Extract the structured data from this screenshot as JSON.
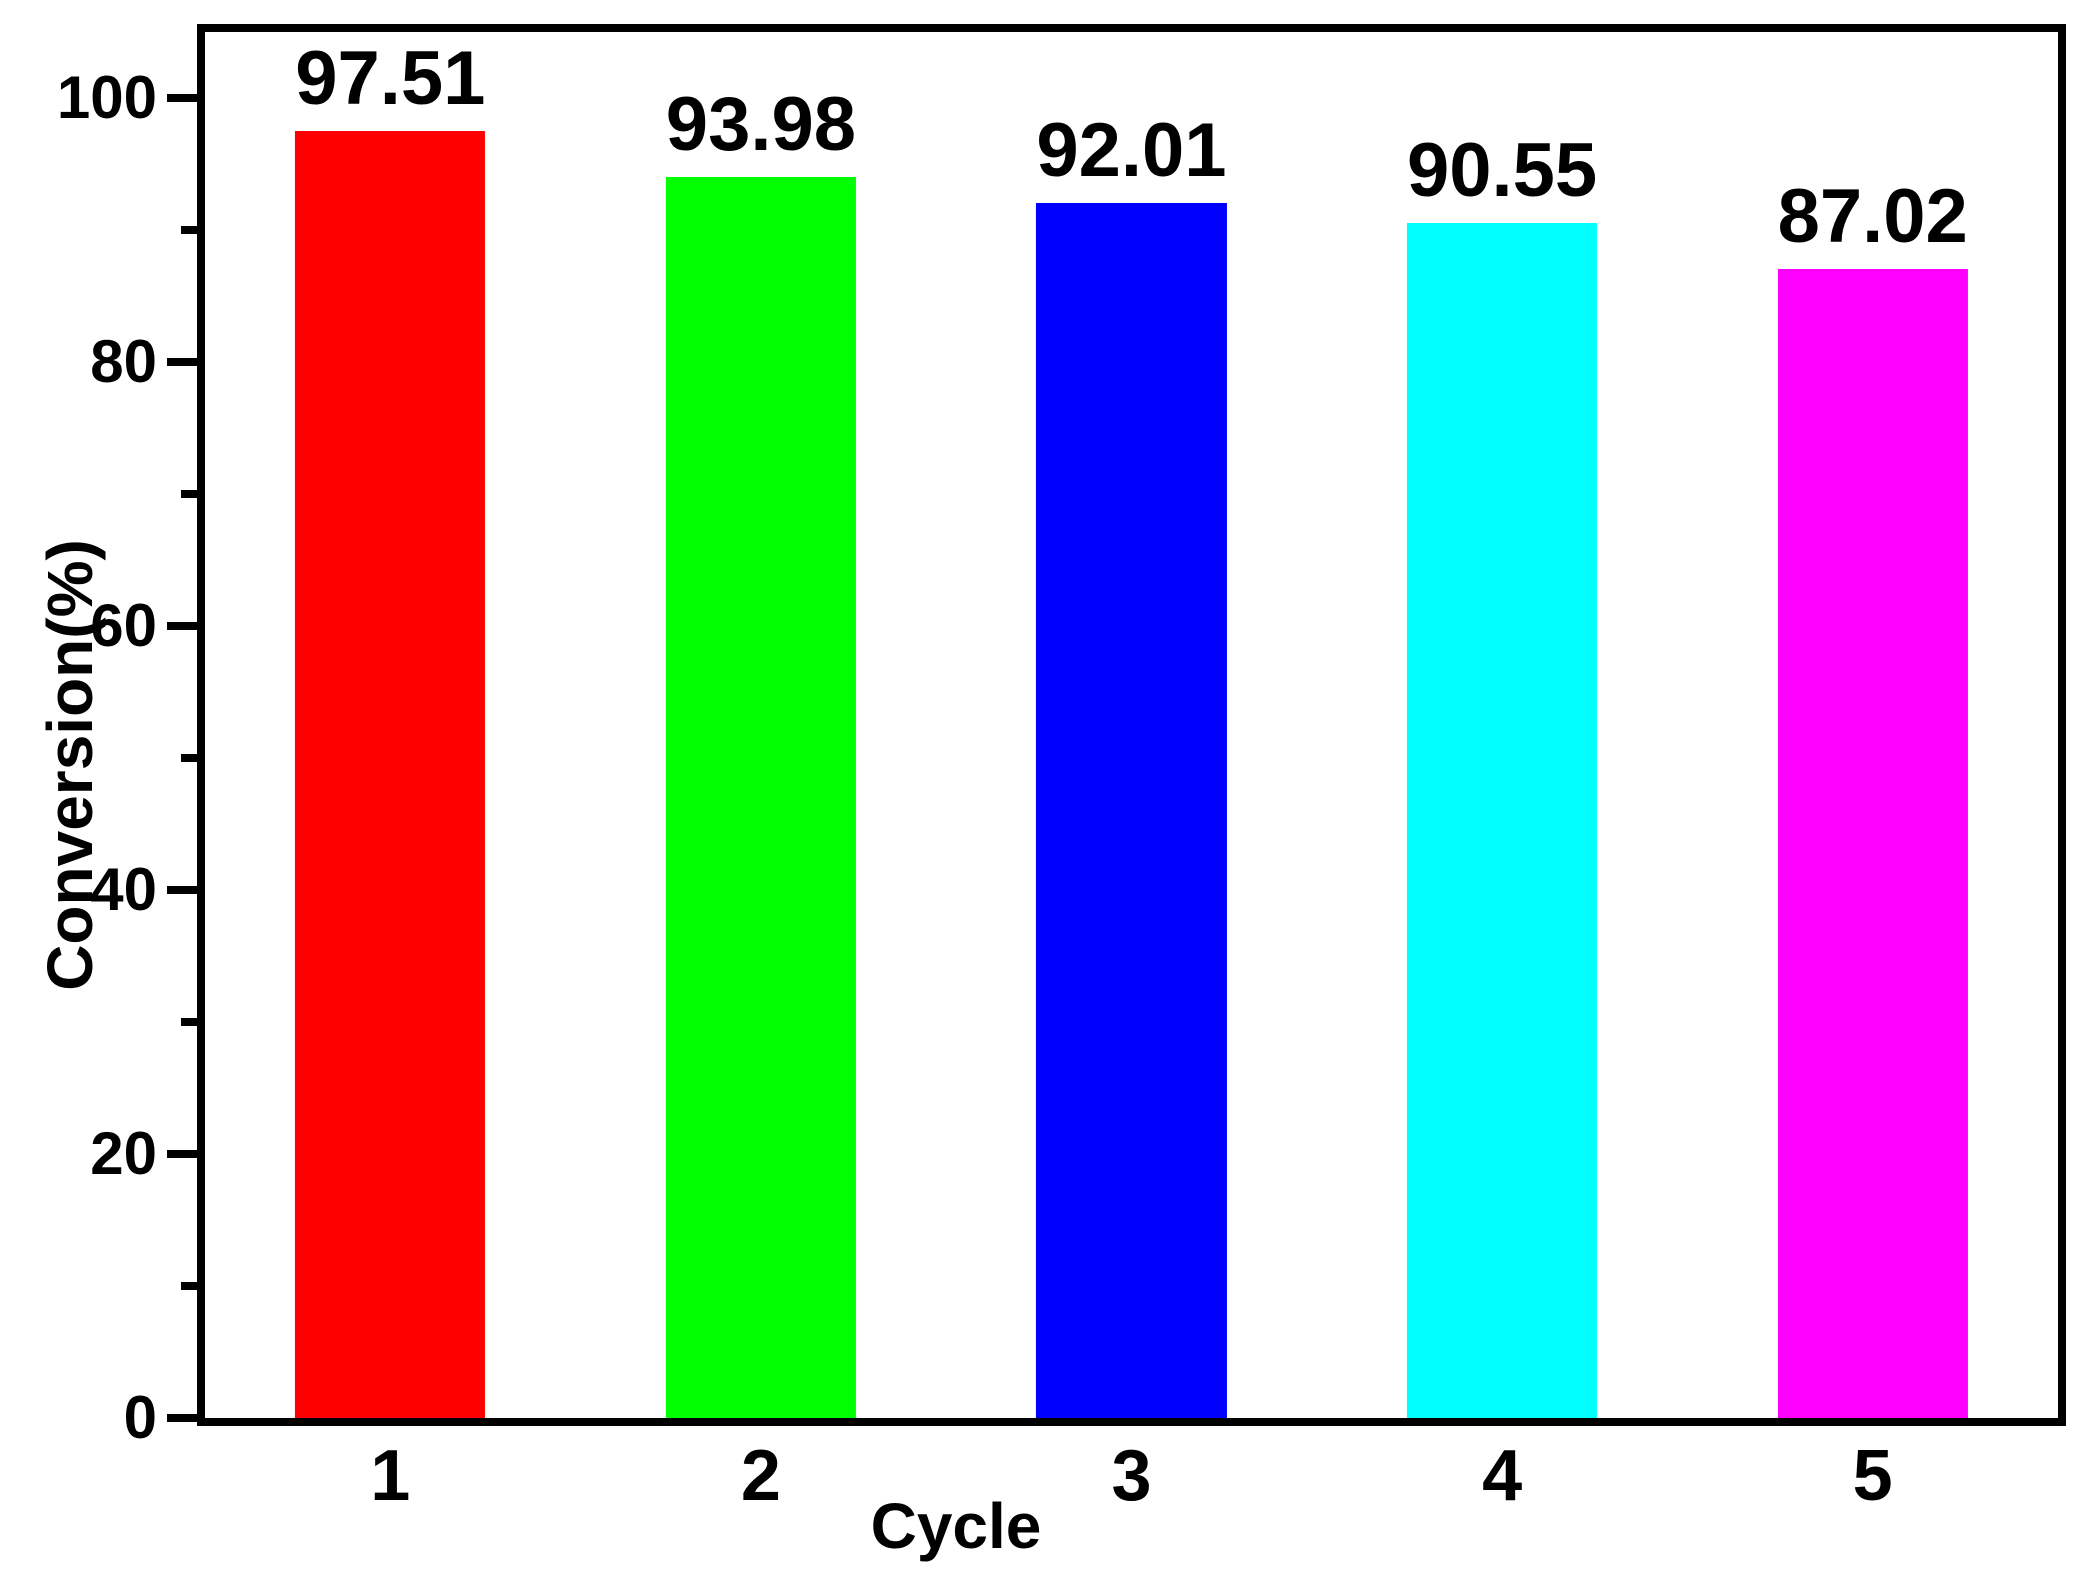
{
  "chart_data": {
    "type": "bar",
    "title": "",
    "categories": [
      "1",
      "2",
      "3",
      "4",
      "5"
    ],
    "values": [
      97.51,
      93.98,
      92.01,
      90.55,
      87.02
    ],
    "value_labels": [
      "97.51",
      "93.98",
      "92.01",
      "90.55",
      "87.02"
    ],
    "bar_colors": [
      "#ff0000",
      "#00ff00",
      "#0000ff",
      "#00ffff",
      "#ff00ff"
    ],
    "xlabel": "Cycle",
    "ylabel": "Conversion(%)",
    "ylim": [
      0,
      105
    ],
    "yticks_major": [
      0,
      20,
      40,
      60,
      80,
      100
    ],
    "yticks_minor": [
      10,
      30,
      50,
      70,
      90
    ],
    "grid": false,
    "legend": "none",
    "bar_width_fraction": 0.513
  },
  "colors": {
    "axis": "#000000",
    "text": "#000000",
    "background": "#ffffff"
  }
}
